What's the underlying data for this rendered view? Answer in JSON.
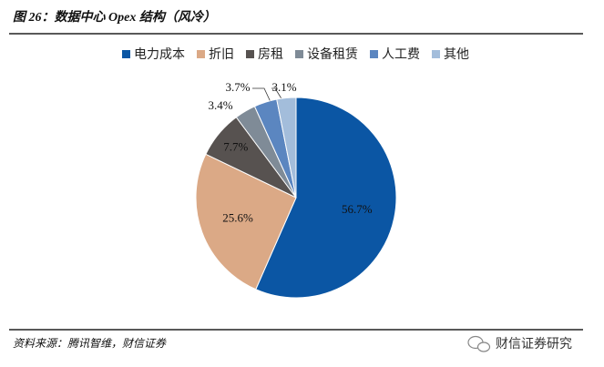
{
  "chart_data": {
    "type": "pie",
    "title": "图 26：数据中心 Opex 结构（风冷）",
    "categories": [
      "电力成本",
      "折旧",
      "房租",
      "设备租赁",
      "人工费",
      "其他"
    ],
    "values": [
      56.7,
      25.6,
      7.7,
      3.4,
      3.7,
      3.1
    ],
    "value_labels": [
      "56.7%",
      "25.6%",
      "7.7%",
      "3.4%",
      "3.7%",
      "3.1%"
    ],
    "colors": [
      "#0b56a4",
      "#dba986",
      "#575250",
      "#7f8b97",
      "#5b86c0",
      "#a3bddb"
    ],
    "legend": "top",
    "source": "资料来源：腾讯智维，财信证券",
    "watermark": "财信证券研究"
  }
}
